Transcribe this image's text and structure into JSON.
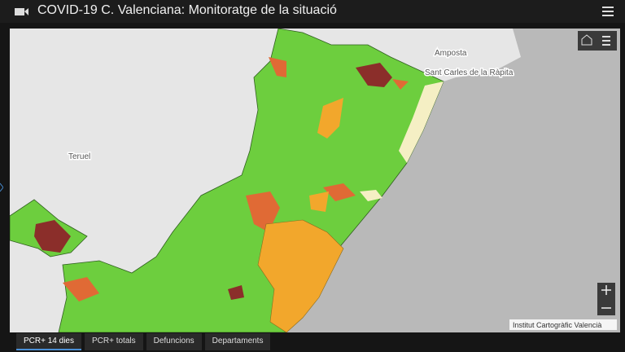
{
  "header": {
    "title": "COVID-19 C. Valenciana: Monitoratge de la situació"
  },
  "map": {
    "place_labels": [
      "Amposta",
      "Sant Carles de la Ràpita",
      "Teruel"
    ],
    "attribution": "Institut Cartogràfic Valencià"
  },
  "tabs": [
    "PCR+ 14 dies",
    "PCR+ totals",
    "Defuncions",
    "Departaments"
  ]
}
